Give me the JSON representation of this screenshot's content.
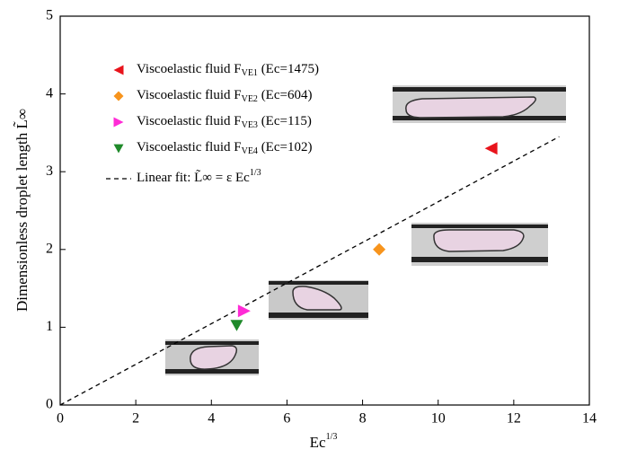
{
  "chart_data": {
    "type": "scatter",
    "xlabel": "Ec1/3",
    "ylabel": "Dimensionless droplet length L̃∞",
    "xlim": [
      0,
      14
    ],
    "ylim": [
      0,
      5
    ],
    "xticks": [
      0,
      2,
      4,
      6,
      8,
      10,
      12,
      14
    ],
    "yticks": [
      0,
      1,
      2,
      3,
      4,
      5
    ],
    "legend": "upper left",
    "series": [
      {
        "name": "Viscoelastic fluid FVE1 (Ec=1475)",
        "color": "#e8141c",
        "marker": "triangle-left",
        "x": [
          11.4
        ],
        "values": [
          3.3
        ]
      },
      {
        "name": "Viscoelastic fluid FVE2 (Ec=604)",
        "color": "#f7941d",
        "marker": "diamond",
        "x": [
          8.44
        ],
        "values": [
          2.0
        ]
      },
      {
        "name": "Viscoelastic fluid FVE3 (Ec=115)",
        "color": "#ff2bd6",
        "marker": "triangle-right",
        "x": [
          4.87
        ],
        "values": [
          1.21
        ]
      },
      {
        "name": "Viscoelastic fluid FVE4 (Ec=102)",
        "color": "#1f8a2a",
        "marker": "triangle-down",
        "x": [
          4.67
        ],
        "values": [
          1.03
        ]
      }
    ],
    "fit": {
      "name": "Linear fit: L̃∞ = ε Ec1/3",
      "color": "#000000",
      "x": [
        0,
        13.2
      ],
      "values": [
        0,
        3.45
      ]
    }
  }
}
